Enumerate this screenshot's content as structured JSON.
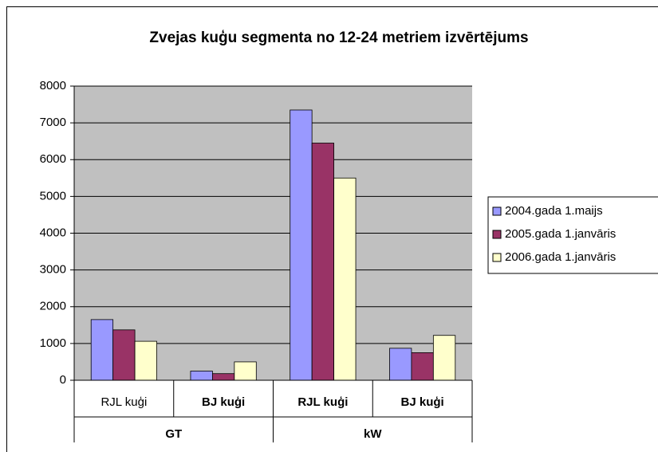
{
  "chart_data": {
    "type": "bar",
    "title": "Zvejas kuģu segmenta no 12-24 metriem izvērtējums",
    "categories": [
      "RJL kuģi",
      "BJ kuģi",
      "RJL kuģi",
      "BJ kuģi"
    ],
    "groups": [
      "GT",
      "kW"
    ],
    "series": [
      {
        "name": "2004.gada 1.maijs",
        "color": "#9999ff",
        "values": [
          1650,
          250,
          7350,
          870
        ]
      },
      {
        "name": "2005.gada 1.janvāris",
        "color": "#993366",
        "values": [
          1370,
          180,
          6450,
          750
        ]
      },
      {
        "name": "2006.gada 1.janvāris",
        "color": "#ffffcc",
        "values": [
          1060,
          500,
          5500,
          1220
        ]
      }
    ],
    "ylim": [
      0,
      8000
    ],
    "yticks": [
      0,
      1000,
      2000,
      3000,
      4000,
      5000,
      6000,
      7000,
      8000
    ],
    "grid": true,
    "legend": "right"
  }
}
